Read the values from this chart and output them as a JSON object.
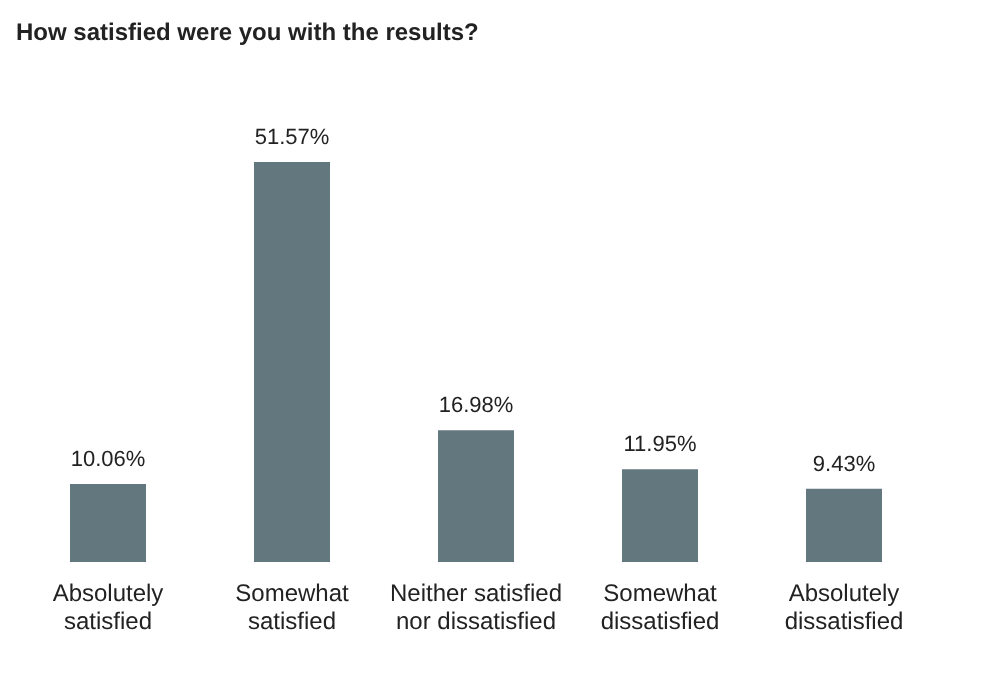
{
  "chart_data": {
    "type": "bar",
    "title": "How satisfied were you with the results?",
    "categories": [
      "Absolutely satisfied",
      "Somewhat satisfied",
      "Neither satisfied nor dissatisfied",
      "Somewhat dissatisfied",
      "Absolutely dissatisfied"
    ],
    "values": [
      10.06,
      51.57,
      16.98,
      11.95,
      9.43
    ],
    "value_labels": [
      "10.06%",
      "51.57%",
      "16.98%",
      "11.95%",
      "9.43%"
    ],
    "color": "#63777f"
  }
}
